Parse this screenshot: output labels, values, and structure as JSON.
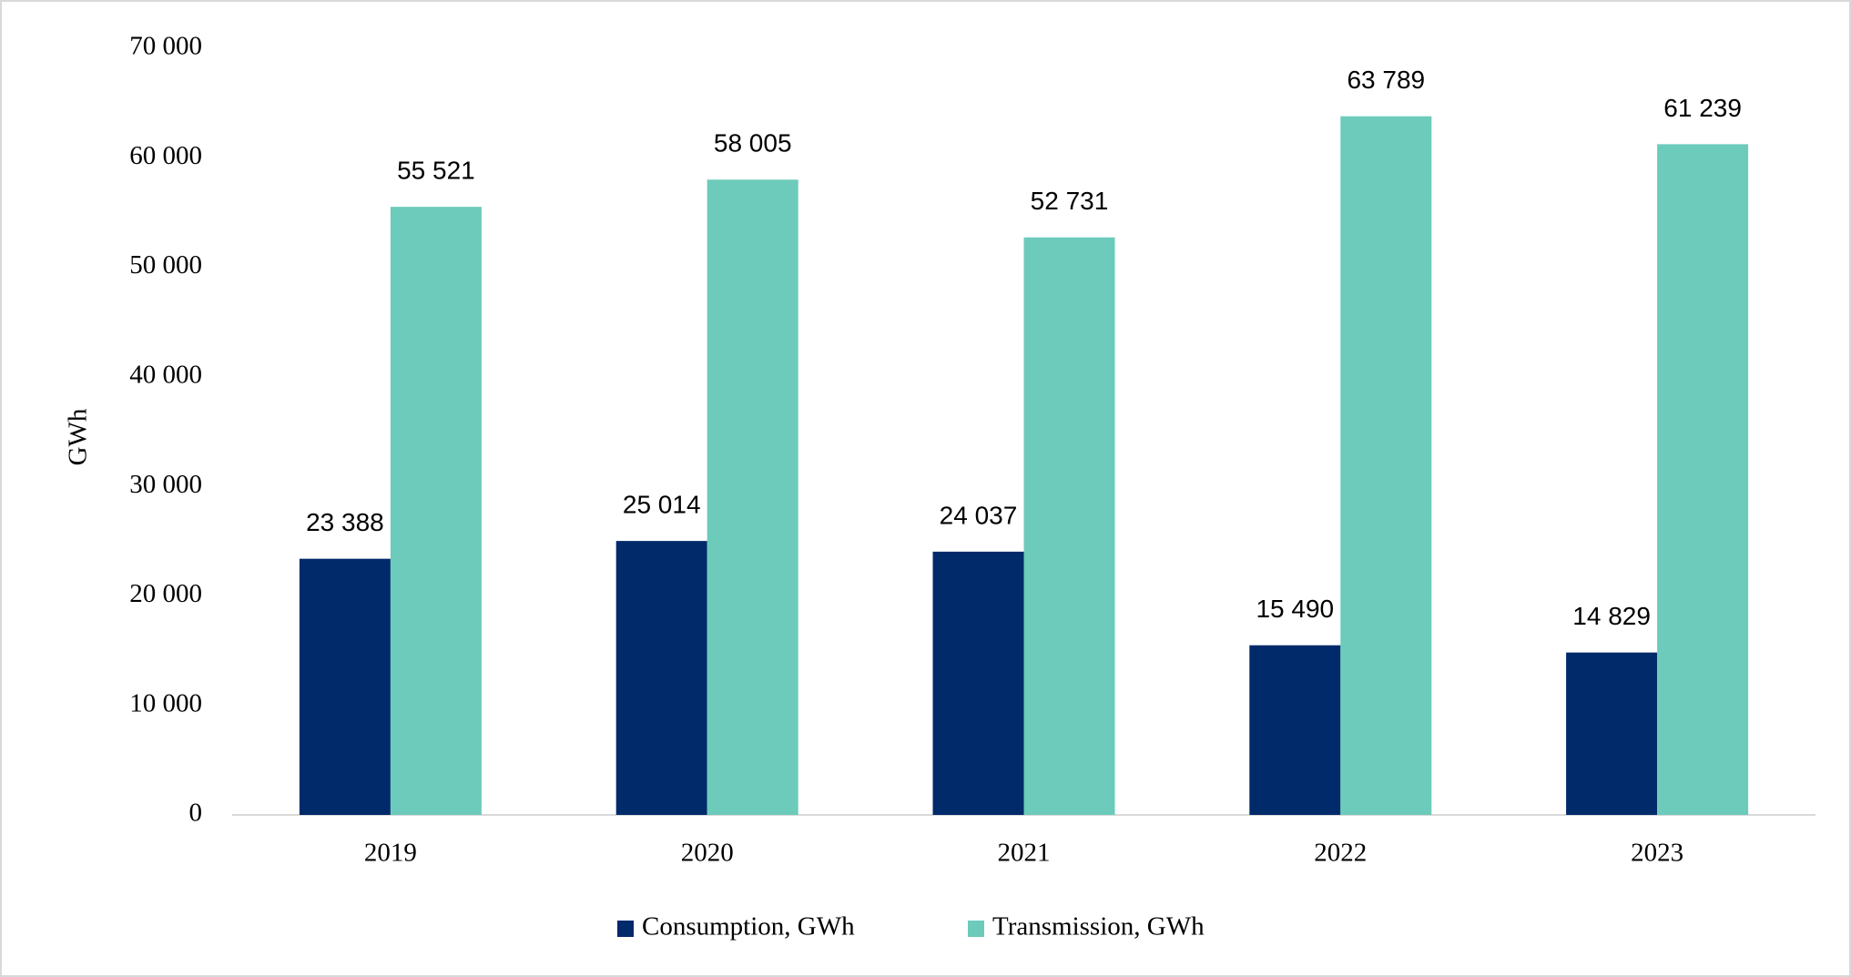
{
  "chart_data": {
    "type": "bar",
    "y_label": "GWh",
    "categories": [
      "2019",
      "2020",
      "2021",
      "2022",
      "2023"
    ],
    "series": [
      {
        "name": "Consumption, GWh",
        "color": "#002a6a",
        "values": [
          23388,
          25014,
          24037,
          15490,
          14829
        ],
        "value_labels": [
          "23 388",
          "25 014",
          "24 037",
          "15 490",
          "14 829"
        ]
      },
      {
        "name": "Transmission, GWh",
        "color": "#6ccbba",
        "values": [
          55521,
          58005,
          52731,
          63789,
          61239
        ],
        "value_labels": [
          "55 521",
          "58 005",
          "52 731",
          "63 789",
          "61 239"
        ]
      }
    ],
    "ylim": [
      0,
      70000
    ],
    "yticks": [
      0,
      {
        "value": 10000,
        "label": "10 000"
      },
      {
        "value": 20000,
        "label": "20 000"
      },
      {
        "value": 30000,
        "label": "30 000"
      },
      {
        "value": 40000,
        "label": "40 000"
      },
      {
        "value": 50000,
        "label": "50 000"
      },
      {
        "value": 60000,
        "label": "60 000"
      },
      {
        "value": 70000,
        "label": "70 000"
      }
    ],
    "grid": false,
    "legend": "bottom"
  }
}
